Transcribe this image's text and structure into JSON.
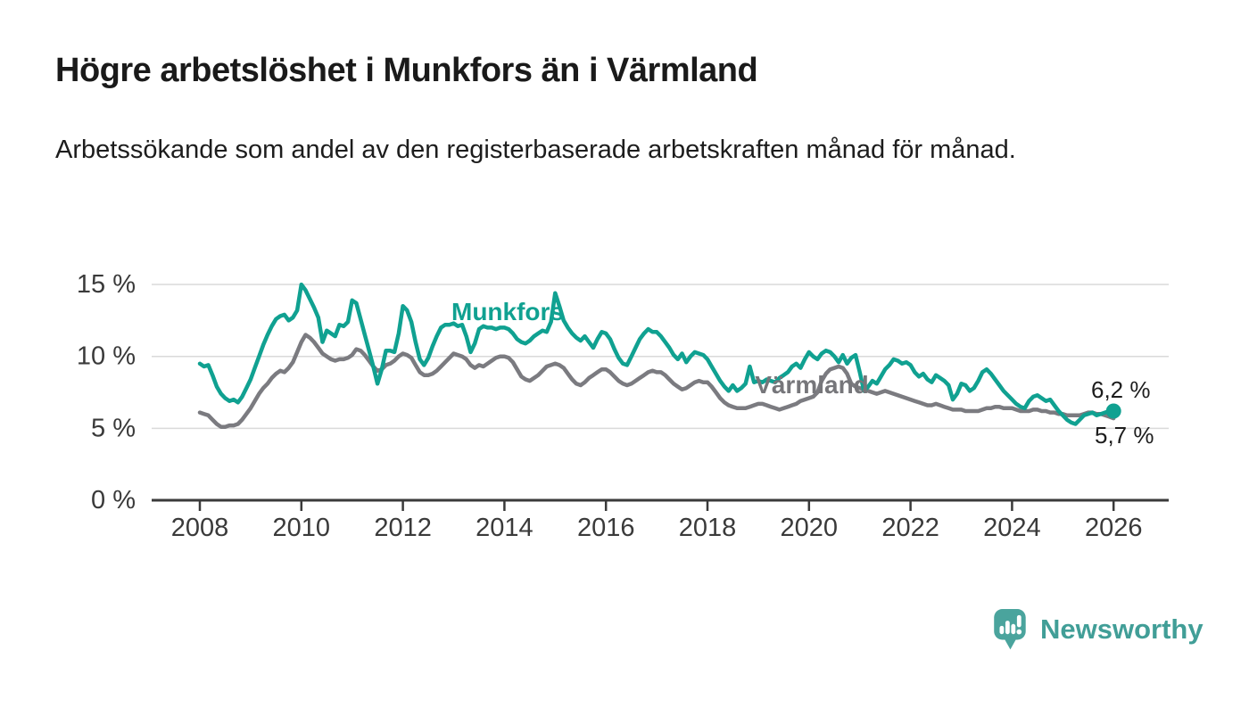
{
  "header": {
    "title": "Högre arbetslöshet i Munkfors än i Värmland",
    "subtitle": "Arbetssökande som andel av den registerbaserade arbetskraften månad för månad."
  },
  "branding": {
    "logo_text": "Newsworthy",
    "logo_color": "#419e97",
    "logo_icon": "bar-chart-speech-bubble-icon"
  },
  "chart_data": {
    "type": "line",
    "unit": "%",
    "frequency": "monthly",
    "start": "2008-01",
    "end": "2026-01",
    "grid": "horizontal",
    "ylim": [
      0,
      15.5
    ],
    "axis_color": "#3a3a3a",
    "grid_color": "#dadada",
    "x_tick_years": [
      2008,
      2010,
      2012,
      2014,
      2016,
      2018,
      2020,
      2022,
      2024,
      2026
    ],
    "y_ticks": [
      {
        "value": 0,
        "label": "0 %"
      },
      {
        "value": 5,
        "label": "5 %"
      },
      {
        "value": 10,
        "label": "10 %"
      },
      {
        "value": 15,
        "label": "15 %"
      }
    ],
    "series": [
      {
        "name": "Värmland",
        "color": "#7b7b80",
        "label_color": "#76767a",
        "end_label": "5,7 %",
        "end_value": 5.7,
        "end_marker": false,
        "values": [
          6.1,
          6.0,
          5.9,
          5.6,
          5.3,
          5.1,
          5.1,
          5.2,
          5.2,
          5.3,
          5.6,
          6.0,
          6.4,
          6.9,
          7.4,
          7.8,
          8.1,
          8.5,
          8.8,
          9.0,
          8.9,
          9.2,
          9.6,
          10.3,
          11.0,
          11.5,
          11.3,
          11.0,
          10.6,
          10.2,
          10.0,
          9.8,
          9.7,
          9.8,
          9.8,
          9.9,
          10.1,
          10.5,
          10.4,
          10.1,
          9.7,
          9.3,
          9.0,
          9.1,
          9.4,
          9.5,
          9.7,
          10.0,
          10.2,
          10.1,
          9.9,
          9.4,
          8.9,
          8.7,
          8.7,
          8.8,
          9.0,
          9.3,
          9.6,
          9.9,
          10.2,
          10.1,
          10.0,
          9.8,
          9.4,
          9.2,
          9.4,
          9.3,
          9.5,
          9.7,
          9.9,
          10.0,
          10.0,
          9.9,
          9.6,
          9.1,
          8.6,
          8.4,
          8.3,
          8.5,
          8.7,
          9.0,
          9.3,
          9.4,
          9.5,
          9.4,
          9.2,
          8.8,
          8.4,
          8.1,
          8.0,
          8.2,
          8.5,
          8.7,
          8.9,
          9.1,
          9.1,
          8.9,
          8.6,
          8.3,
          8.1,
          8.0,
          8.1,
          8.3,
          8.5,
          8.7,
          8.9,
          9.0,
          8.9,
          8.9,
          8.7,
          8.4,
          8.1,
          7.9,
          7.7,
          7.8,
          8.0,
          8.2,
          8.3,
          8.2,
          8.2,
          7.9,
          7.5,
          7.1,
          6.8,
          6.6,
          6.5,
          6.4,
          6.4,
          6.4,
          6.5,
          6.6,
          6.7,
          6.7,
          6.6,
          6.5,
          6.4,
          6.3,
          6.4,
          6.5,
          6.6,
          6.7,
          6.9,
          7.0,
          7.1,
          7.2,
          7.5,
          8.3,
          8.8,
          9.1,
          9.2,
          9.3,
          9.2,
          8.8,
          8.1,
          7.9,
          7.8,
          7.7,
          7.6,
          7.5,
          7.4,
          7.5,
          7.6,
          7.5,
          7.4,
          7.3,
          7.2,
          7.1,
          7.0,
          6.9,
          6.8,
          6.7,
          6.6,
          6.6,
          6.7,
          6.6,
          6.5,
          6.4,
          6.3,
          6.3,
          6.3,
          6.2,
          6.2,
          6.2,
          6.2,
          6.3,
          6.4,
          6.4,
          6.5,
          6.5,
          6.4,
          6.4,
          6.4,
          6.3,
          6.2,
          6.2,
          6.2,
          6.3,
          6.3,
          6.2,
          6.2,
          6.1,
          6.1,
          6.0,
          6.0,
          5.9,
          5.9,
          5.9,
          5.9,
          6.0,
          6.1,
          6.1,
          6.0,
          6.0,
          5.9,
          5.8,
          5.7
        ]
      },
      {
        "name": "Munkfors",
        "color": "#10a191",
        "label_color": "#10a191",
        "end_label": "6,2 %",
        "end_value": 6.2,
        "end_marker": true,
        "values": [
          9.5,
          9.3,
          9.4,
          8.7,
          7.9,
          7.4,
          7.1,
          6.9,
          7.0,
          6.8,
          7.2,
          7.8,
          8.4,
          9.2,
          10.0,
          10.8,
          11.5,
          12.1,
          12.6,
          12.8,
          12.9,
          12.5,
          12.7,
          13.2,
          15.0,
          14.6,
          14.0,
          13.4,
          12.7,
          11.0,
          11.8,
          11.6,
          11.4,
          12.2,
          12.1,
          12.4,
          13.9,
          13.7,
          12.6,
          11.5,
          10.4,
          9.3,
          8.1,
          9.1,
          10.4,
          10.4,
          10.3,
          11.6,
          13.5,
          13.2,
          12.4,
          11.0,
          9.8,
          9.4,
          9.9,
          10.7,
          11.4,
          12.0,
          12.2,
          12.2,
          12.3,
          12.1,
          12.2,
          11.4,
          10.3,
          10.9,
          11.9,
          12.1,
          12.0,
          12.0,
          11.9,
          12.0,
          12.0,
          11.9,
          11.6,
          11.2,
          11.0,
          10.9,
          11.1,
          11.4,
          11.6,
          11.8,
          11.7,
          12.4,
          14.4,
          13.5,
          12.5,
          12.0,
          11.6,
          11.3,
          11.1,
          11.4,
          11.0,
          10.6,
          11.2,
          11.7,
          11.6,
          11.2,
          10.5,
          9.9,
          9.5,
          9.4,
          10.0,
          10.6,
          11.2,
          11.6,
          11.9,
          11.7,
          11.7,
          11.4,
          11.0,
          10.6,
          10.1,
          9.8,
          10.2,
          9.6,
          10.0,
          10.3,
          10.2,
          10.1,
          9.8,
          9.3,
          8.8,
          8.3,
          7.9,
          7.6,
          8.0,
          7.6,
          7.8,
          8.1,
          9.3,
          8.2,
          8.3,
          8.2,
          8.4,
          8.3,
          8.2,
          8.5,
          8.7,
          8.9,
          9.3,
          9.5,
          9.2,
          9.8,
          10.3,
          10.0,
          9.8,
          10.2,
          10.4,
          10.3,
          10.0,
          9.6,
          10.1,
          9.5,
          9.9,
          10.1,
          8.9,
          7.6,
          7.9,
          8.3,
          8.1,
          8.6,
          9.1,
          9.4,
          9.8,
          9.7,
          9.5,
          9.6,
          9.4,
          8.9,
          8.6,
          8.8,
          8.4,
          8.2,
          8.7,
          8.5,
          8.3,
          8.0,
          7.0,
          7.4,
          8.1,
          8.0,
          7.6,
          7.8,
          8.3,
          8.9,
          9.1,
          8.8,
          8.4,
          8.0,
          7.6,
          7.3,
          7.0,
          6.7,
          6.5,
          6.4,
          6.9,
          7.2,
          7.3,
          7.1,
          6.9,
          7.0,
          6.6,
          6.2,
          5.9,
          5.6,
          5.4,
          5.3,
          5.6,
          5.9,
          6.0,
          6.1,
          5.9,
          6.0,
          6.1,
          6.2,
          6.2
        ]
      }
    ]
  }
}
